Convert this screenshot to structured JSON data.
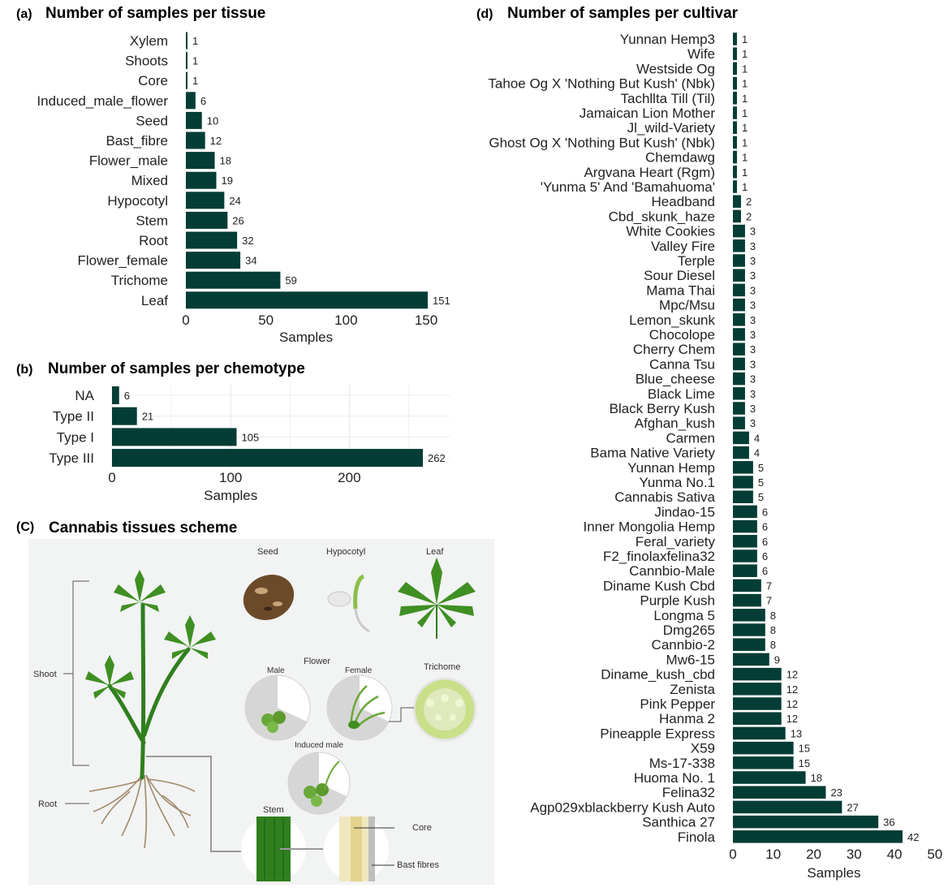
{
  "bar_color": "#033d35",
  "panels": {
    "a": {
      "tag": "(a)",
      "title": "Number of samples per tissue"
    },
    "b": {
      "tag": "(b)",
      "title": "Number of samples per chemotype"
    },
    "c": {
      "tag": "(C)",
      "title": "Cannabis tissues scheme"
    },
    "d": {
      "tag": "(d)",
      "title": "Number of samples per cultivar"
    }
  },
  "scheme": {
    "labels": {
      "seed": "Seed",
      "hypocotyl": "Hypocotyl",
      "leaf": "Leaf",
      "flower": "Flower",
      "male": "Male",
      "female": "Female",
      "trichome": "Trichome",
      "induced_male": "Induced male",
      "shoot": "Shoot",
      "root": "Root",
      "stem": "Stem",
      "core": "Core",
      "bast": "Bast fibres"
    },
    "colors": {
      "background": "#f2f3f3",
      "leaf": "#3f8f22",
      "stem": "#2f7f1e",
      "seed": "#6b4a2a",
      "trichome": "#c9df8a"
    }
  },
  "chart_data": [
    {
      "id": "a",
      "type": "bar",
      "orientation": "horizontal",
      "title": "Number of samples per tissue",
      "xlabel": "Samples",
      "xlim": [
        0,
        160
      ],
      "xticks": [
        0,
        50,
        100,
        150
      ],
      "categories": [
        "Xylem",
        "Shoots",
        "Core",
        "Induced_male_flower",
        "Seed",
        "Bast_fibre",
        "Flower_male",
        "Mixed",
        "Hypocotyl",
        "Stem",
        "Root",
        "Flower_female",
        "Trichome",
        "Leaf"
      ],
      "values": [
        1,
        1,
        1,
        6,
        10,
        12,
        18,
        19,
        24,
        26,
        32,
        34,
        59,
        151
      ],
      "grid": false
    },
    {
      "id": "b",
      "type": "bar",
      "orientation": "horizontal",
      "title": "Number of samples per chemotype",
      "xlabel": "Samples",
      "xlim": [
        0,
        285
      ],
      "xticks": [
        0,
        100,
        200
      ],
      "categories": [
        "NA",
        "Type II",
        "Type I",
        "Type III"
      ],
      "values": [
        6,
        21,
        105,
        262
      ],
      "grid": true
    },
    {
      "id": "d",
      "type": "bar",
      "orientation": "horizontal",
      "title": "Number of samples per cultivar",
      "xlabel": "Samples",
      "xlim": [
        0,
        50
      ],
      "xticks": [
        0,
        10,
        20,
        30,
        40,
        50
      ],
      "categories": [
        "Yunnan Hemp3",
        "Wife",
        "Westside Og",
        "Tahoe Og X 'Nothing But Kush' (Nbk)",
        "Tachllta Till (Til)",
        "Jamaican Lion Mother",
        "Jl_wild-Variety",
        "Ghost Og X 'Nothing But Kush' (Nbk)",
        "Chemdawg",
        "Argvana Heart (Rgm)",
        "'Yunma 5' And 'Bamahuoma'",
        "Headband",
        "Cbd_skunk_haze",
        "White Cookies",
        "Valley Fire",
        "Terple",
        "Sour Diesel",
        "Mama Thai",
        "Mpc/Msu",
        "Lemon_skunk",
        "Chocolope",
        "Cherry Chem",
        "Canna Tsu",
        "Blue_cheese",
        "Black Lime",
        "Black Berry Kush",
        "Afghan_kush",
        "Carmen",
        "Bama Native Variety",
        "Yunnan Hemp",
        "Yunma No.1",
        "Cannabis Sativa",
        "Jindao-15",
        "Inner Mongolia Hemp",
        "Feral_variety",
        "F2_finolaxfelina32",
        "Cannbio-Male",
        "Diname Kush Cbd",
        "Purple Kush",
        "Longma 5",
        "Dmg265",
        "Cannbio-2",
        "Mw6-15",
        "Diname_kush_cbd",
        "Zenista",
        "Pink Pepper",
        "Hanma 2",
        "Pineapple Express",
        "X59",
        "Ms-17-338",
        "Huoma No. 1",
        "Felina32",
        "Agp029xblackberry Kush Auto",
        "Santhica 27",
        "Finola"
      ],
      "values": [
        1,
        1,
        1,
        1,
        1,
        1,
        1,
        1,
        1,
        1,
        1,
        2,
        2,
        3,
        3,
        3,
        3,
        3,
        3,
        3,
        3,
        3,
        3,
        3,
        3,
        3,
        3,
        4,
        4,
        5,
        5,
        5,
        6,
        6,
        6,
        6,
        6,
        7,
        7,
        8,
        8,
        8,
        9,
        12,
        12,
        12,
        12,
        13,
        15,
        15,
        18,
        23,
        27,
        36,
        42
      ],
      "grid": false
    }
  ]
}
